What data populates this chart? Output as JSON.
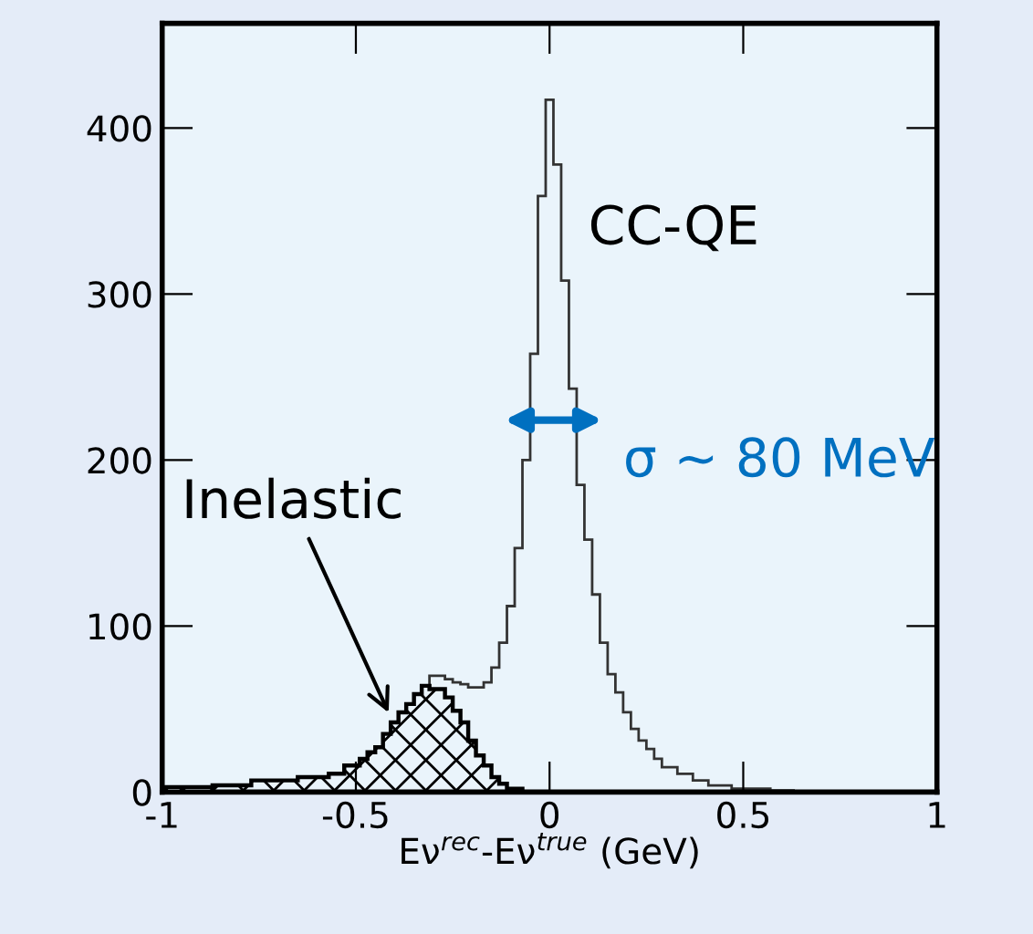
{
  "chart_data": {
    "type": "histogram",
    "xlabel": "Eν$^{rec}$-Eν$^{true}$ (GeV)",
    "bins": [
      -0.99,
      -0.97,
      -0.95,
      -0.93,
      -0.91,
      -0.89,
      -0.87,
      -0.85,
      -0.83,
      -0.81,
      -0.79,
      -0.77,
      -0.75,
      -0.73,
      -0.71,
      -0.69,
      -0.67,
      -0.65,
      -0.63,
      -0.61,
      -0.59,
      -0.57,
      -0.55,
      -0.53,
      -0.51,
      -0.49,
      -0.47,
      -0.45,
      -0.43,
      -0.41,
      -0.39,
      -0.37,
      -0.35,
      -0.33,
      -0.31,
      -0.29,
      -0.27,
      -0.25,
      -0.23,
      -0.21,
      -0.19,
      -0.17,
      -0.15,
      -0.13,
      -0.11,
      -0.09,
      -0.07,
      -0.05,
      -0.03,
      -0.01,
      0.01,
      0.03,
      0.05,
      0.07,
      0.09,
      0.11,
      0.13,
      0.15,
      0.17,
      0.19,
      0.21,
      0.23,
      0.25,
      0.27,
      0.29,
      0.31,
      0.33,
      0.35,
      0.37,
      0.39,
      0.41,
      0.43,
      0.45,
      0.47,
      0.49,
      0.51,
      0.53,
      0.55,
      0.57,
      0.59,
      0.61,
      0.63,
      0.65,
      0.67,
      0.69,
      0.71,
      0.73,
      0.75,
      0.77,
      0.79,
      0.81,
      0.83,
      0.85,
      0.87,
      0.89,
      0.91,
      0.93,
      0.95,
      0.97,
      0.99
    ],
    "series": [
      {
        "name": "CC-QE",
        "color": "#333333",
        "values": [
          3,
          3,
          3,
          3,
          3,
          3,
          4,
          4,
          4,
          4,
          4,
          7,
          7,
          7,
          7,
          7,
          7,
          9,
          9,
          9,
          9,
          11,
          11,
          16,
          16,
          20,
          24,
          27,
          35,
          42,
          48,
          53,
          59,
          64,
          70,
          70,
          68,
          66,
          65,
          63,
          63,
          66,
          75,
          90,
          112,
          147,
          200,
          264,
          359,
          417,
          378,
          308,
          243,
          185,
          152,
          119,
          90,
          71,
          60,
          48,
          38,
          31,
          26,
          20,
          15,
          15,
          11,
          11,
          7,
          7,
          4,
          4,
          4,
          2,
          2,
          2,
          2,
          2,
          1,
          1,
          1,
          0,
          0,
          0,
          0,
          0,
          0,
          0,
          0,
          0,
          0,
          0,
          0,
          0,
          0,
          0,
          0,
          0,
          0
        ]
      },
      {
        "name": "Inelastic",
        "color": "#000000",
        "values": [
          3,
          3,
          3,
          3,
          3,
          3,
          4,
          4,
          4,
          4,
          4,
          7,
          7,
          7,
          7,
          7,
          7,
          9,
          9,
          9,
          9,
          11,
          11,
          16,
          16,
          20,
          24,
          27,
          35,
          42,
          48,
          53,
          59,
          64,
          62,
          62,
          57,
          49,
          42,
          31,
          22,
          16,
          9,
          5,
          2,
          2,
          0,
          0,
          0,
          0,
          0,
          0,
          0,
          0,
          0,
          0,
          0,
          0,
          0,
          0,
          0,
          0,
          0,
          0,
          0,
          0,
          0,
          0,
          0,
          0,
          0,
          0,
          0,
          0,
          0,
          0,
          0,
          0,
          0,
          0,
          0,
          0,
          0,
          0,
          0,
          0,
          0,
          0,
          0,
          0,
          0,
          0,
          0,
          0,
          0,
          0,
          0,
          0,
          0
        ]
      }
    ],
    "annotations": [
      "σ ~ 80 MeV"
    ],
    "xlim": [
      -1,
      1
    ],
    "ylim": [
      0,
      463
    ],
    "xticks": [
      -1,
      -0.5,
      0,
      0.5,
      1
    ],
    "yticks": [
      0,
      100,
      200,
      300,
      400
    ],
    "grid": false,
    "legend": false
  }
}
